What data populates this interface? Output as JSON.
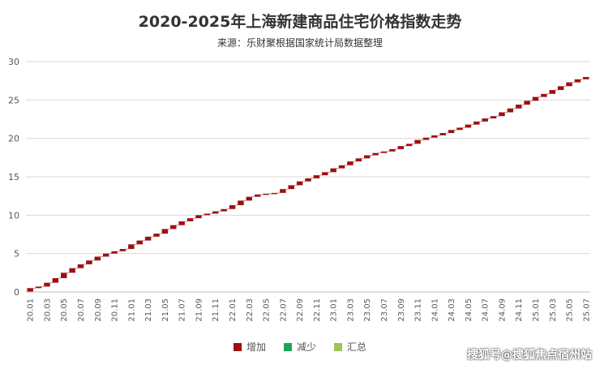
{
  "chart_data": {
    "type": "bar",
    "subtype": "waterfall",
    "title": "2020-2025年上海新建商品住宅价格指数走势",
    "subtitle": "来源：乐财聚根据国家统计局数据整理",
    "xlabel": "",
    "ylabel": "",
    "ylim": [
      0,
      30
    ],
    "yticks": [
      0,
      5,
      10,
      15,
      20,
      25,
      30
    ],
    "grid": true,
    "legend_position": "bottom",
    "xticks": [
      "20.01",
      "20.03",
      "20.05",
      "20.07",
      "20.09",
      "20.11",
      "21.01",
      "21.03",
      "21.05",
      "21.07",
      "21.09",
      "21.11",
      "22.01",
      "22.03",
      "22.05",
      "22.07",
      "22.09",
      "22.11",
      "23.01",
      "23.03",
      "23.05",
      "23.07",
      "23.09",
      "23.11",
      "24.01",
      "24.03",
      "24.05",
      "24.07",
      "24.09",
      "24.11",
      "25.01",
      "25.03",
      "25.05",
      "25.07"
    ],
    "legend": [
      {
        "name": "增加",
        "color": "#a00f10"
      },
      {
        "name": "减少",
        "color": "#1aa35a"
      },
      {
        "name": "汇总",
        "color": "#9bc75a"
      }
    ],
    "series": [
      {
        "name": "增加",
        "color": "#a00f10",
        "categories": [
          "20.01",
          "20.02",
          "20.03",
          "20.04",
          "20.05",
          "20.06",
          "20.07",
          "20.08",
          "20.09",
          "20.10",
          "20.11",
          "20.12",
          "21.01",
          "21.02",
          "21.03",
          "21.04",
          "21.05",
          "21.06",
          "21.07",
          "21.08",
          "21.09",
          "21.10",
          "21.11",
          "21.12",
          "22.01",
          "22.02",
          "22.03",
          "22.04",
          "22.05",
          "22.06",
          "22.07",
          "22.08",
          "22.09",
          "22.10",
          "22.11",
          "22.12",
          "23.01",
          "23.02",
          "23.03",
          "23.04",
          "23.05",
          "23.06",
          "23.07",
          "23.08",
          "23.09",
          "23.10",
          "23.11",
          "23.12",
          "24.01",
          "24.02",
          "24.03",
          "24.04",
          "24.05",
          "24.06",
          "24.07",
          "24.08",
          "24.09",
          "24.10",
          "24.11",
          "24.12",
          "25.01",
          "25.02",
          "25.03",
          "25.04",
          "25.05",
          "25.06",
          "25.07"
        ],
        "values": [
          0.5,
          0.2,
          0.5,
          0.6,
          0.7,
          0.6,
          0.5,
          0.5,
          0.5,
          0.4,
          0.3,
          0.3,
          0.6,
          0.5,
          0.5,
          0.4,
          0.6,
          0.5,
          0.5,
          0.4,
          0.4,
          0.2,
          0.3,
          0.3,
          0.5,
          0.6,
          0.5,
          0.3,
          0.1,
          0.1,
          0.5,
          0.5,
          0.5,
          0.4,
          0.4,
          0.4,
          0.5,
          0.4,
          0.5,
          0.4,
          0.4,
          0.3,
          0.2,
          0.3,
          0.4,
          0.3,
          0.5,
          0.3,
          0.3,
          0.3,
          0.4,
          0.3,
          0.4,
          0.4,
          0.4,
          0.3,
          0.5,
          0.5,
          0.5,
          0.5,
          0.5,
          0.4,
          0.5,
          0.5,
          0.5,
          0.4,
          0.3
        ]
      }
    ]
  },
  "watermark": "搜狐号@搜狐焦点宿州站"
}
